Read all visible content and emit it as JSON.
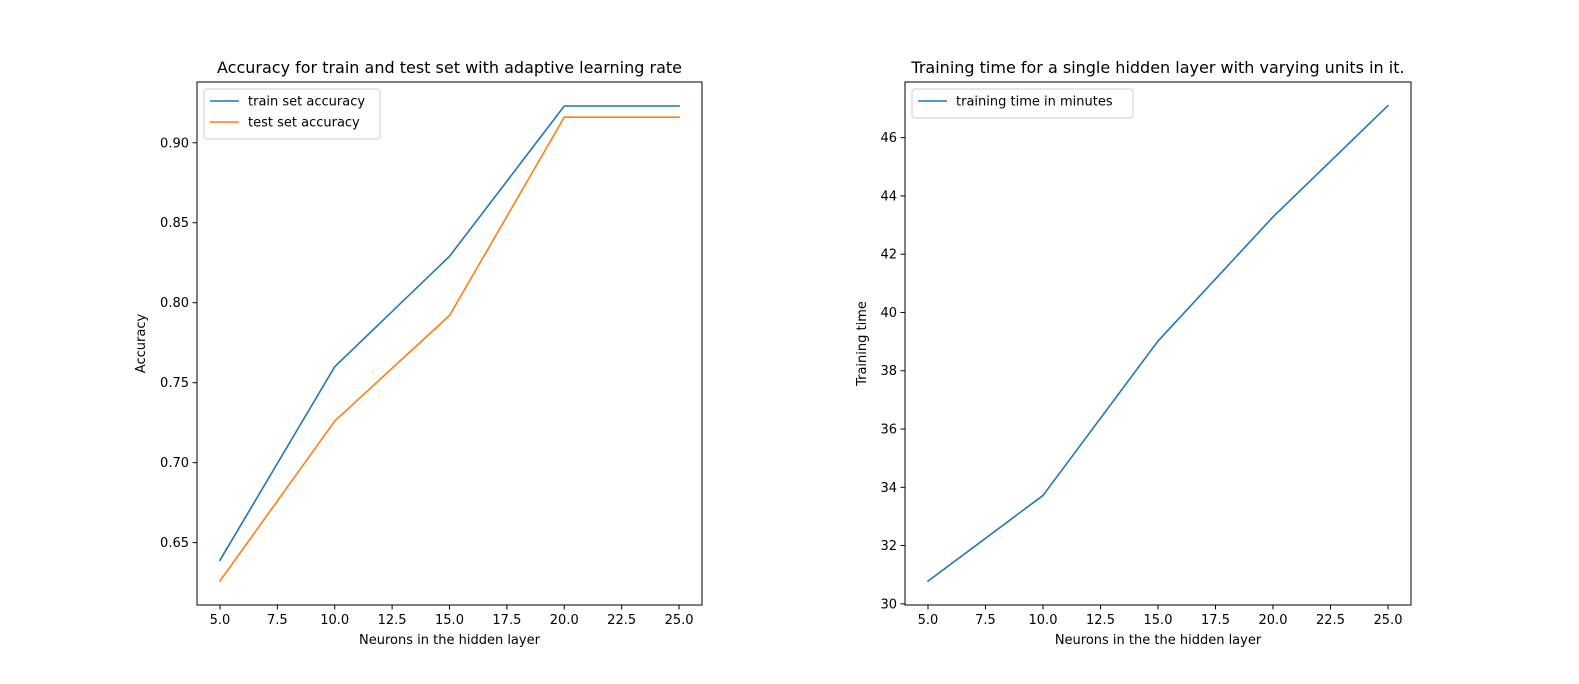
{
  "chart_data": [
    {
      "type": "line",
      "title": "Accuracy for train and test set with adaptive learning rate",
      "xlabel": "Neurons in the hidden layer",
      "ylabel": "Accuracy",
      "xlim": [
        4.0,
        26.0
      ],
      "ylim": [
        0.611,
        0.938
      ],
      "xticks": [
        5,
        7.5,
        10,
        12.5,
        15,
        17.5,
        20,
        22.5,
        25
      ],
      "xtick_labels": [
        "5.0",
        "7.5",
        "10.0",
        "12.5",
        "15.0",
        "17.5",
        "20.0",
        "22.5",
        "25.0"
      ],
      "yticks": [
        0.65,
        0.7,
        0.75,
        0.8,
        0.85,
        0.9
      ],
      "ytick_labels": [
        "0.65",
        "0.70",
        "0.75",
        "0.80",
        "0.85",
        "0.90"
      ],
      "grid": false,
      "legend_position": "upper-left",
      "x": [
        5,
        10,
        15,
        20,
        25
      ],
      "series": [
        {
          "name": "train set accuracy",
          "values": [
            0.639,
            0.76,
            0.829,
            0.923,
            0.923
          ],
          "color": "#1f77b4"
        },
        {
          "name": "test set accuracy",
          "values": [
            0.626,
            0.726,
            0.792,
            0.916,
            0.916
          ],
          "color": "#ff7f0e"
        }
      ]
    },
    {
      "type": "line",
      "title": "Training time for a single hidden layer with varying units in it.",
      "xlabel": "Neurons in the the hidden layer",
      "ylabel": "Training time",
      "xlim": [
        4.0,
        26.0
      ],
      "ylim": [
        29.96,
        47.91
      ],
      "xticks": [
        5,
        7.5,
        10,
        12.5,
        15,
        17.5,
        20,
        22.5,
        25
      ],
      "xtick_labels": [
        "5.0",
        "7.5",
        "10.0",
        "12.5",
        "15.0",
        "17.5",
        "20.0",
        "22.5",
        "25.0"
      ],
      "yticks": [
        30,
        32,
        34,
        36,
        38,
        40,
        42,
        44,
        46
      ],
      "ytick_labels": [
        "30",
        "32",
        "34",
        "36",
        "38",
        "40",
        "42",
        "44",
        "46"
      ],
      "grid": false,
      "legend_position": "upper-left",
      "x": [
        5,
        10,
        15,
        20,
        25
      ],
      "series": [
        {
          "name": "training time in minutes",
          "values": [
            30.78,
            33.72,
            39.02,
            43.28,
            47.1
          ],
          "color": "#1f77b4"
        }
      ]
    }
  ]
}
